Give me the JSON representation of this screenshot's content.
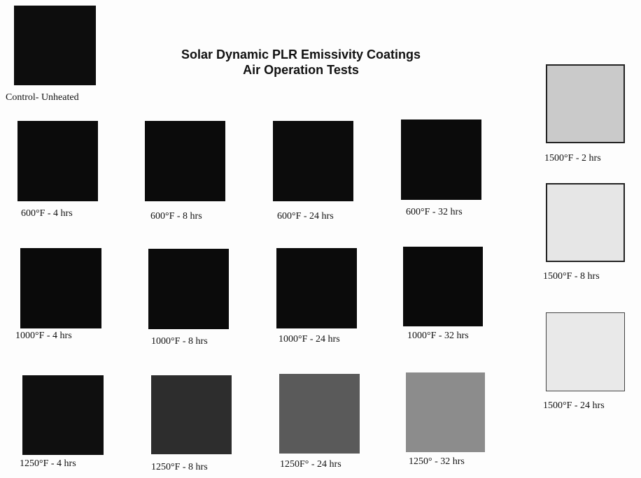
{
  "header": {
    "title": [
      "Solar Dynamic PLR Emissivity Coatings",
      "Air Operation Tests"
    ]
  },
  "samples": [
    {
      "label": "Control- Unheated"
    },
    {
      "label": "600°F - 4 hrs"
    },
    {
      "label": "600°F - 8 hrs"
    },
    {
      "label": "600°F - 24 hrs"
    },
    {
      "label": "600°F - 32 hrs"
    },
    {
      "label": "1000°F - 4 hrs"
    },
    {
      "label": "1000°F - 8 hrs"
    },
    {
      "label": "1000°F - 24 hrs"
    },
    {
      "label": "1000°F - 32 hrs"
    },
    {
      "label": "1250°F - 4 hrs"
    },
    {
      "label": "1250°F - 8 hrs"
    },
    {
      "label": "1250F° - 24 hrs"
    },
    {
      "label": "1250° - 32 hrs"
    },
    {
      "label": "1500°F - 2 hrs"
    },
    {
      "label": "1500°F - 8 hrs"
    },
    {
      "label": "1500°F - 24 hrs"
    }
  ]
}
